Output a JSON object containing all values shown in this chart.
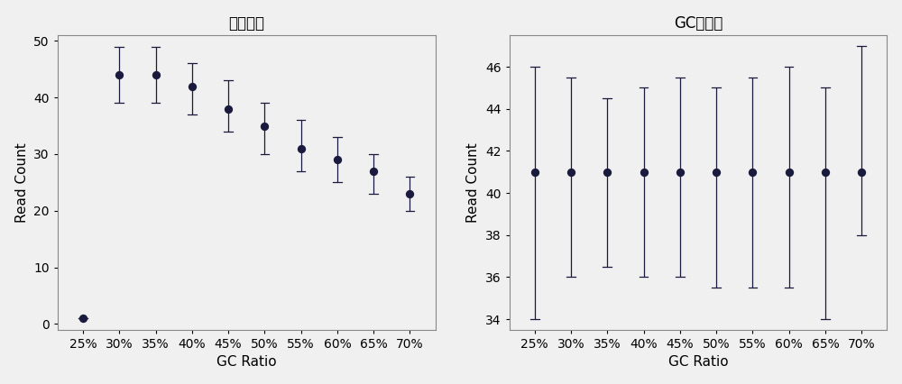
{
  "left_title": "原始数据",
  "right_title": "GC校正后",
  "xlabel": "GC Ratio",
  "ylabel": "Read Count",
  "categories": [
    "25%",
    "30%",
    "35%",
    "40%",
    "45%",
    "50%",
    "55%",
    "60%",
    "65%",
    "70%"
  ],
  "left_y": [
    1,
    44,
    44,
    42,
    38,
    35,
    31,
    29,
    27,
    23
  ],
  "left_yerr_upper": [
    0,
    5,
    5,
    4,
    5,
    4,
    5,
    4,
    3,
    3
  ],
  "left_yerr_lower": [
    0,
    5,
    5,
    5,
    4,
    5,
    4,
    4,
    4,
    3
  ],
  "left_ylim": [
    -1,
    51
  ],
  "left_yticks": [
    0,
    10,
    20,
    30,
    40,
    50
  ],
  "right_y": [
    41,
    41,
    41,
    41,
    41,
    41,
    41,
    41,
    41,
    41
  ],
  "right_yerr_upper": [
    5.0,
    4.5,
    3.5,
    4.0,
    4.5,
    4.0,
    4.5,
    5.0,
    4.0,
    6.0
  ],
  "right_yerr_lower": [
    7.0,
    5.0,
    4.5,
    5.0,
    5.0,
    5.5,
    5.5,
    5.5,
    7.0,
    3.0
  ],
  "right_ylim": [
    33.5,
    47.5
  ],
  "right_yticks": [
    34,
    36,
    38,
    40,
    42,
    44,
    46
  ],
  "dot_color": "#1a1a3e",
  "line_color": "#1a1a3e",
  "bg_color": "#f0f0f0",
  "plot_bg": "#f0f0f0",
  "fontsize_title": 12,
  "fontsize_label": 11,
  "fontsize_tick": 10
}
